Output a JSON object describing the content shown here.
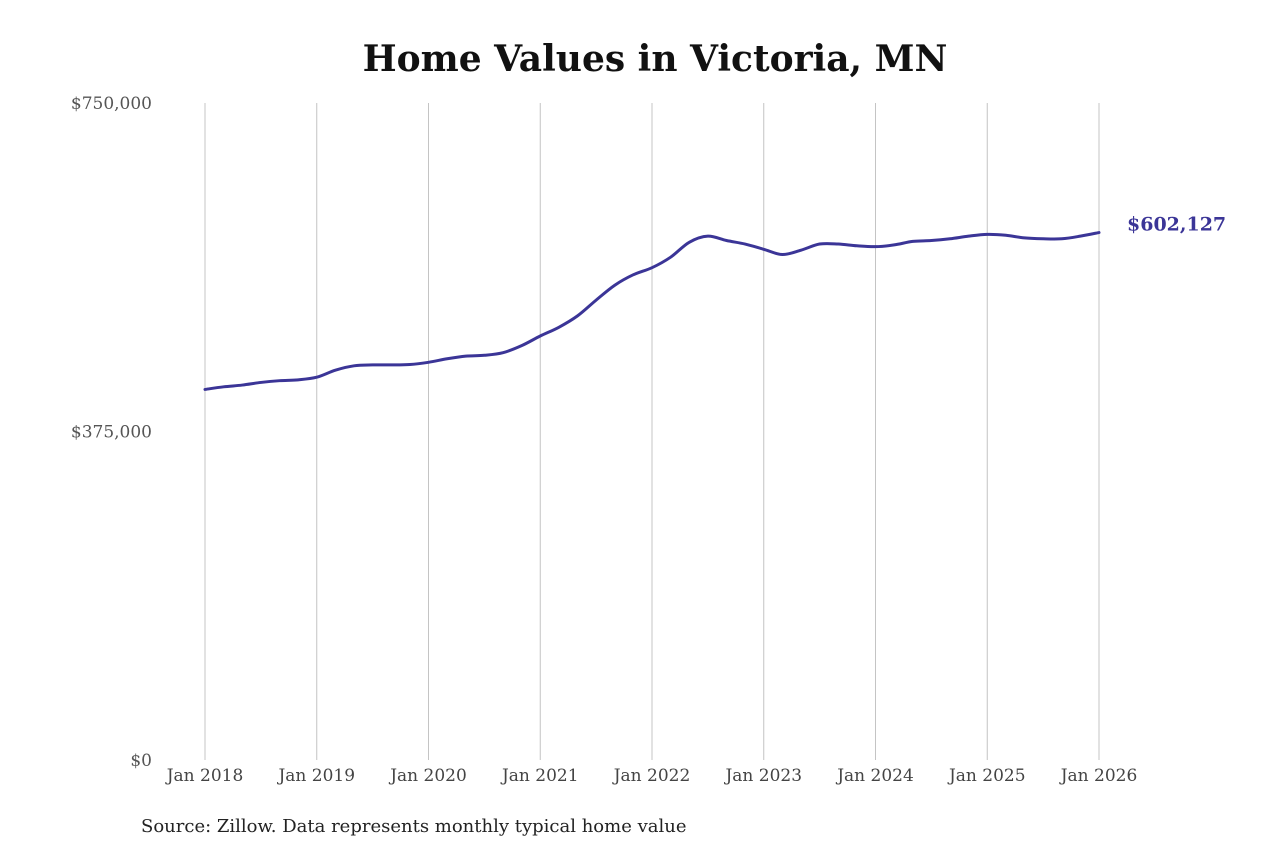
{
  "chart_data": {
    "type": "line",
    "title": "Home Values in Victoria, MN",
    "source": "Source: Zillow. Data represents monthly typical home value",
    "y_ticks": [
      "$0",
      "$375,000",
      "$750,000"
    ],
    "ylim": [
      0,
      750000
    ],
    "x_ticks": [
      "Jan 2018",
      "Jan 2019",
      "Jan 2020",
      "Jan 2021",
      "Jan 2022",
      "Jan 2023",
      "Jan 2024",
      "Jan 2025",
      "Jan 2026"
    ],
    "xlim": [
      "2018-01",
      "2026-02"
    ],
    "grid": "vertical",
    "line_color": "#3b3597",
    "end_label": "$602,127",
    "series": [
      {
        "points": [
          [
            "2018-01",
            423000
          ],
          [
            "2018-03",
            426000
          ],
          [
            "2018-05",
            428000
          ],
          [
            "2018-07",
            431000
          ],
          [
            "2018-09",
            433000
          ],
          [
            "2018-11",
            434000
          ],
          [
            "2019-01",
            437000
          ],
          [
            "2019-03",
            445000
          ],
          [
            "2019-05",
            450000
          ],
          [
            "2019-07",
            451000
          ],
          [
            "2019-09",
            451000
          ],
          [
            "2019-11",
            451500
          ],
          [
            "2020-01",
            454000
          ],
          [
            "2020-03",
            458000
          ],
          [
            "2020-05",
            461000
          ],
          [
            "2020-07",
            462000
          ],
          [
            "2020-09",
            465000
          ],
          [
            "2020-11",
            473000
          ],
          [
            "2021-01",
            484000
          ],
          [
            "2021-03",
            494000
          ],
          [
            "2021-05",
            507000
          ],
          [
            "2021-07",
            525000
          ],
          [
            "2021-09",
            542000
          ],
          [
            "2021-11",
            554000
          ],
          [
            "2022-01",
            562000
          ],
          [
            "2022-03",
            574000
          ],
          [
            "2022-05",
            591000
          ],
          [
            "2022-07",
            598000
          ],
          [
            "2022-09",
            593000
          ],
          [
            "2022-11",
            589000
          ],
          [
            "2023-01",
            583000
          ],
          [
            "2023-03",
            577000
          ],
          [
            "2023-05",
            582000
          ],
          [
            "2023-07",
            589000
          ],
          [
            "2023-09",
            589000
          ],
          [
            "2023-11",
            587000
          ],
          [
            "2024-01",
            586000
          ],
          [
            "2024-03",
            588000
          ],
          [
            "2024-05",
            592000
          ],
          [
            "2024-07",
            593000
          ],
          [
            "2024-09",
            595000
          ],
          [
            "2024-11",
            598000
          ],
          [
            "2025-01",
            600000
          ],
          [
            "2025-03",
            599000
          ],
          [
            "2025-05",
            596000
          ],
          [
            "2025-07",
            595000
          ],
          [
            "2025-09",
            595000
          ],
          [
            "2025-11",
            598000
          ],
          [
            "2026-01",
            602127
          ]
        ]
      }
    ]
  }
}
